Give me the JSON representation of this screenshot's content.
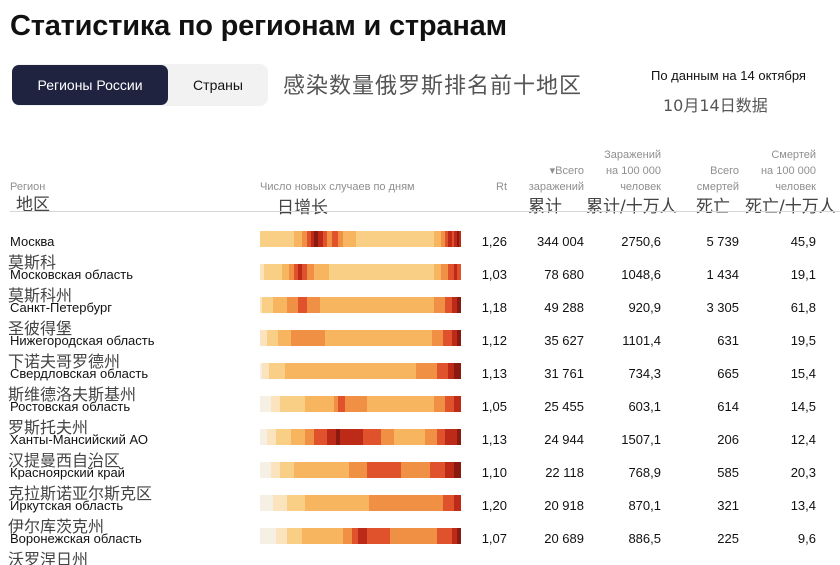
{
  "page_title": "Статистика по регионам и странам",
  "tabs": [
    {
      "label": "Регионы России",
      "active": true
    },
    {
      "label": "Страны",
      "active": false
    }
  ],
  "overlay_caption": "感染数量俄罗斯排名前十地区",
  "date_note": {
    "ru": "По данным на 14 октября",
    "zh": "10月14日数据"
  },
  "columns": {
    "region": {
      "ru": "Регион",
      "zh": "地区"
    },
    "new_cases": {
      "ru": "Число новых случаев по дням",
      "zh": "日增长"
    },
    "rt": {
      "ru": "Rt"
    },
    "total": {
      "ru_line1": "▾Всего",
      "ru_line2": "заражений",
      "zh": "累计"
    },
    "per100k": {
      "ru_line1": "Заражений",
      "ru_line2": "на 100 000",
      "ru_line3": "человек",
      "zh": "累计/十万人"
    },
    "deaths": {
      "ru_line1": "Всего",
      "ru_line2": "смертей",
      "zh": "死亡"
    },
    "deaths_per100k": {
      "ru_line1": "Смертей",
      "ru_line2": "на 100 000",
      "ru_line3": "человек",
      "zh": "死亡/十万人"
    }
  },
  "heat_colors": [
    "#f6efe4",
    "#fbe3bd",
    "#f8cf85",
    "#f6b55e",
    "#ef9045",
    "#e0522c",
    "#bd2a18",
    "#8a1a10"
  ],
  "rows": [
    {
      "region_ru": "Москва",
      "region_zh": "莫斯科",
      "rt": "1,26",
      "total": "344 004",
      "per100k": "2750,6",
      "deaths": "5 739",
      "deaths_per100k": "45,9",
      "heatmap": [
        2,
        2,
        2,
        2,
        2,
        2,
        2,
        2,
        2,
        2,
        2,
        2,
        2,
        2,
        2,
        3,
        3,
        3,
        3,
        4,
        4,
        5,
        5,
        6,
        7,
        7,
        6,
        6,
        5,
        5,
        4,
        4,
        5,
        5,
        5,
        4,
        4,
        3,
        3,
        3,
        3,
        3,
        3,
        2,
        2,
        2,
        2,
        2,
        2,
        2,
        2,
        2,
        2,
        2,
        2,
        2,
        2,
        2,
        2,
        2,
        2,
        2,
        2,
        2,
        2,
        2,
        2,
        2,
        2,
        2,
        2,
        2,
        2,
        2,
        2,
        2,
        2,
        2,
        3,
        3,
        3,
        4,
        4,
        5,
        6,
        6,
        5,
        6,
        7,
        6
      ]
    },
    {
      "region_ru": "Московская область",
      "region_zh": "莫斯科州",
      "rt": "1,03",
      "total": "78 680",
      "per100k": "1048,6",
      "deaths": "1 434",
      "deaths_per100k": "19,1",
      "heatmap": [
        1,
        1,
        2,
        2,
        2,
        2,
        2,
        2,
        2,
        2,
        3,
        3,
        3,
        4,
        4,
        5,
        5,
        6,
        6,
        5,
        5,
        4,
        4,
        4,
        3,
        3,
        3,
        3,
        3,
        3,
        3,
        2,
        2,
        2,
        2,
        2,
        2,
        2,
        2,
        2,
        2,
        2,
        2,
        2,
        2,
        2,
        2,
        2,
        2,
        2,
        2,
        2,
        2,
        2,
        2,
        2,
        2,
        2,
        2,
        2,
        2,
        2,
        2,
        2,
        2,
        2,
        2,
        2,
        2,
        2,
        2,
        2,
        2,
        2,
        2,
        2,
        2,
        2,
        3,
        3,
        3,
        4,
        4,
        4,
        5,
        5,
        5,
        6,
        5,
        5
      ]
    },
    {
      "region_ru": "Санкт-Петербург",
      "region_zh": "圣彼得堡",
      "rt": "1,18",
      "total": "49 288",
      "per100k": "920,9",
      "deaths": "3 305",
      "deaths_per100k": "61,8",
      "heatmap": [
        1,
        2,
        2,
        2,
        2,
        2,
        3,
        3,
        3,
        3,
        3,
        3,
        4,
        4,
        4,
        4,
        4,
        5,
        5,
        5,
        5,
        4,
        4,
        4,
        4,
        4,
        4,
        3,
        3,
        3,
        3,
        3,
        3,
        3,
        3,
        3,
        3,
        3,
        3,
        3,
        3,
        3,
        3,
        3,
        3,
        3,
        3,
        3,
        3,
        3,
        3,
        3,
        3,
        3,
        3,
        3,
        3,
        3,
        3,
        3,
        3,
        3,
        3,
        3,
        3,
        3,
        3,
        3,
        3,
        3,
        3,
        3,
        3,
        3,
        3,
        3,
        3,
        3,
        4,
        4,
        4,
        4,
        4,
        5,
        5,
        5,
        6,
        6,
        7,
        7
      ]
    },
    {
      "region_ru": "Нижегородская область",
      "region_zh": "下诺夫哥罗德州",
      "rt": "1,12",
      "total": "35 627",
      "per100k": "1101,4",
      "deaths": "631",
      "deaths_per100k": "19,5",
      "heatmap": [
        1,
        1,
        1,
        2,
        2,
        2,
        2,
        2,
        3,
        3,
        3,
        3,
        3,
        3,
        4,
        4,
        4,
        4,
        4,
        4,
        4,
        4,
        4,
        4,
        4,
        4,
        4,
        4,
        4,
        3,
        3,
        3,
        3,
        3,
        3,
        3,
        3,
        3,
        3,
        3,
        3,
        3,
        3,
        3,
        3,
        3,
        3,
        3,
        3,
        3,
        3,
        3,
        3,
        3,
        3,
        3,
        3,
        3,
        3,
        3,
        3,
        3,
        3,
        3,
        3,
        3,
        3,
        3,
        3,
        3,
        3,
        3,
        3,
        3,
        3,
        3,
        3,
        4,
        4,
        4,
        4,
        4,
        5,
        5,
        5,
        5,
        6,
        6,
        7,
        7
      ]
    },
    {
      "region_ru": "Свердловская область",
      "region_zh": "斯维德洛夫斯基州",
      "rt": "1,13",
      "total": "31 761",
      "per100k": "734,3",
      "deaths": "665",
      "deaths_per100k": "15,4",
      "heatmap": [
        0,
        1,
        1,
        1,
        2,
        2,
        2,
        2,
        2,
        2,
        2,
        3,
        3,
        3,
        3,
        3,
        3,
        3,
        3,
        3,
        3,
        3,
        3,
        3,
        3,
        3,
        3,
        3,
        3,
        3,
        3,
        3,
        3,
        3,
        3,
        3,
        3,
        3,
        3,
        3,
        3,
        3,
        3,
        3,
        3,
        3,
        3,
        3,
        3,
        3,
        3,
        3,
        3,
        3,
        3,
        3,
        3,
        3,
        3,
        3,
        3,
        3,
        3,
        3,
        3,
        3,
        3,
        3,
        3,
        3,
        4,
        4,
        4,
        4,
        4,
        4,
        4,
        4,
        4,
        5,
        5,
        5,
        5,
        5,
        6,
        6,
        6,
        7,
        7,
        7
      ]
    },
    {
      "region_ru": "Ростовская область",
      "region_zh": "罗斯托夫州",
      "rt": "1,05",
      "total": "25 455",
      "per100k": "603,1",
      "deaths": "614",
      "deaths_per100k": "14,5",
      "heatmap": [
        0,
        0,
        0,
        0,
        0,
        1,
        1,
        1,
        1,
        2,
        2,
        2,
        2,
        2,
        2,
        2,
        2,
        2,
        2,
        2,
        3,
        3,
        3,
        3,
        3,
        3,
        3,
        3,
        3,
        3,
        3,
        3,
        3,
        4,
        4,
        5,
        5,
        5,
        4,
        4,
        4,
        4,
        4,
        4,
        4,
        4,
        4,
        4,
        3,
        3,
        3,
        3,
        3,
        3,
        3,
        3,
        3,
        3,
        3,
        3,
        3,
        3,
        3,
        3,
        3,
        3,
        3,
        3,
        3,
        3,
        3,
        3,
        3,
        3,
        3,
        3,
        3,
        3,
        4,
        4,
        4,
        4,
        4,
        5,
        5,
        5,
        5,
        6,
        6,
        6
      ]
    },
    {
      "region_ru": "Ханты-Мансийский АО",
      "region_zh": "汉提曼西自治区",
      "rt": "1,13",
      "total": "24 944",
      "per100k": "1507,1",
      "deaths": "206",
      "deaths_per100k": "12,4",
      "heatmap": [
        0,
        0,
        0,
        1,
        1,
        1,
        1,
        2,
        2,
        2,
        2,
        2,
        2,
        2,
        3,
        3,
        3,
        3,
        3,
        3,
        4,
        4,
        4,
        4,
        5,
        5,
        5,
        5,
        5,
        5,
        6,
        6,
        6,
        6,
        7,
        7,
        6,
        6,
        6,
        6,
        6,
        6,
        6,
        6,
        6,
        6,
        5,
        5,
        5,
        5,
        5,
        5,
        5,
        5,
        4,
        4,
        4,
        4,
        4,
        4,
        3,
        3,
        3,
        3,
        3,
        3,
        3,
        3,
        3,
        3,
        3,
        3,
        3,
        3,
        4,
        4,
        4,
        4,
        4,
        5,
        5,
        5,
        5,
        6,
        6,
        6,
        6,
        6,
        7,
        7
      ]
    },
    {
      "region_ru": "Красноярский край",
      "region_zh": "克拉斯诺亚尔斯克区",
      "rt": "1,10",
      "total": "22 118",
      "per100k": "768,9",
      "deaths": "585",
      "deaths_per100k": "20,3",
      "heatmap": [
        0,
        0,
        0,
        0,
        0,
        1,
        1,
        1,
        1,
        2,
        2,
        2,
        2,
        2,
        2,
        3,
        3,
        3,
        3,
        3,
        3,
        3,
        3,
        3,
        3,
        3,
        3,
        3,
        3,
        3,
        3,
        3,
        3,
        3,
        3,
        3,
        3,
        3,
        3,
        3,
        4,
        4,
        4,
        4,
        4,
        4,
        4,
        4,
        5,
        5,
        5,
        5,
        5,
        5,
        5,
        5,
        5,
        5,
        5,
        5,
        5,
        5,
        5,
        4,
        4,
        4,
        4,
        4,
        4,
        4,
        4,
        4,
        4,
        4,
        4,
        4,
        5,
        5,
        5,
        5,
        5,
        5,
        5,
        6,
        6,
        6,
        6,
        7,
        7,
        7
      ]
    },
    {
      "region_ru": "Иркутская область",
      "region_zh": "伊尔库茨克州",
      "rt": "1,20",
      "total": "20 918",
      "per100k": "870,1",
      "deaths": "321",
      "deaths_per100k": "13,4",
      "heatmap": [
        0,
        0,
        0,
        0,
        0,
        0,
        1,
        1,
        1,
        1,
        1,
        1,
        2,
        2,
        2,
        2,
        2,
        2,
        2,
        2,
        3,
        3,
        3,
        3,
        3,
        3,
        3,
        3,
        3,
        3,
        3,
        3,
        3,
        3,
        3,
        3,
        3,
        3,
        3,
        3,
        3,
        3,
        3,
        3,
        3,
        3,
        3,
        3,
        3,
        4,
        4,
        4,
        4,
        4,
        4,
        4,
        4,
        4,
        4,
        4,
        4,
        4,
        4,
        4,
        4,
        4,
        4,
        4,
        4,
        4,
        4,
        4,
        4,
        4,
        4,
        4,
        4,
        4,
        4,
        4,
        4,
        4,
        5,
        5,
        5,
        5,
        5,
        6,
        6,
        6
      ]
    },
    {
      "region_ru": "Воронежская область",
      "region_zh": "沃罗涅日州",
      "rt": "1,07",
      "total": "20 689",
      "per100k": "886,5",
      "deaths": "225",
      "deaths_per100k": "9,6",
      "heatmap": [
        0,
        0,
        0,
        0,
        0,
        0,
        0,
        1,
        1,
        1,
        1,
        1,
        2,
        2,
        2,
        2,
        2,
        2,
        2,
        3,
        3,
        3,
        3,
        3,
        3,
        3,
        3,
        3,
        3,
        3,
        3,
        3,
        3,
        3,
        3,
        3,
        3,
        4,
        4,
        4,
        4,
        5,
        5,
        5,
        6,
        6,
        6,
        6,
        5,
        5,
        5,
        5,
        5,
        5,
        5,
        5,
        5,
        5,
        4,
        4,
        4,
        4,
        4,
        4,
        4,
        4,
        4,
        4,
        4,
        4,
        4,
        4,
        4,
        4,
        4,
        4,
        4,
        4,
        4,
        5,
        5,
        5,
        5,
        5,
        5,
        5,
        6,
        6,
        7,
        7
      ]
    }
  ]
}
